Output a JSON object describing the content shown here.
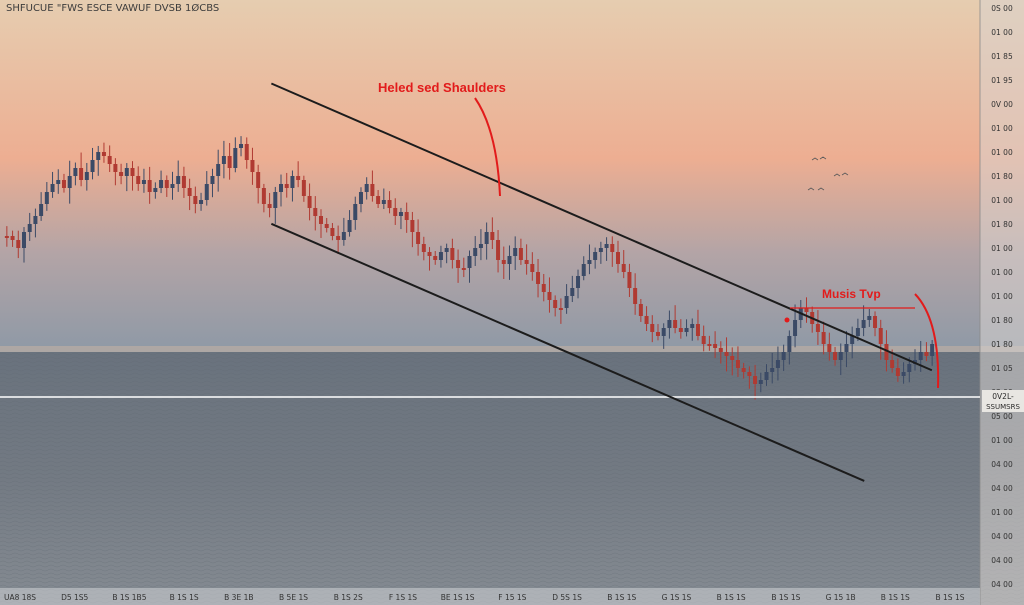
{
  "header": {
    "title": "SHFUCUE \"FWS ESCE VAWUF DVSB 1ØCBS"
  },
  "annotations": {
    "pattern_label": "Heled sed Shaulders",
    "top_label": "Musis Tvp"
  },
  "price_tag": {
    "line1": "0V2L-",
    "line2": "SSUMSRS"
  },
  "colors": {
    "sky_top": "#e8c8a6",
    "sky_mid": "#edb092",
    "sky_low": "#9aa4b0",
    "sea": "#6e747c",
    "bull_candle": "#3b4a66",
    "bear_candle": "#b03a32",
    "annotation": "#e21b1b",
    "trendline": "#1c1c1c"
  },
  "chart_data": {
    "type": "candlestick",
    "title": "SHFUCUE \"FWS ESCE VAWUF DVSB 1ØCBS",
    "price_axis_labels": [
      "0S 00",
      "01 00",
      "01 85",
      "01 95",
      "0V 00",
      "01 00",
      "01 00",
      "01 80",
      "01 00",
      "01 80",
      "01 00",
      "01 00",
      "01 00",
      "01 80",
      "01 80",
      "01 05",
      "03 00",
      "05 00",
      "01 00",
      "04 00",
      "04 00",
      "01 00",
      "04 00",
      "04 00",
      "04 00"
    ],
    "time_axis_labels": [
      "UA8 18S",
      "D5 1S5",
      "B 1S 1B5",
      "B 1S 1S",
      "B 3E 1B",
      "B 5E 1S",
      "B 1S 2S",
      "F 1S 1S",
      "BE 1S 1S",
      "F 15 1S",
      "D 5S 1S",
      "B 1S 1S",
      "G 1S 1S",
      "B 1S 1S",
      "B 1S 1S",
      "G 15 1B",
      "B 1S 1S",
      "B 1S 1S"
    ],
    "current_level_label": "0V2L- SSUMSRS",
    "trendline_upper": {
      "from": [
        0.265,
        0.138
      ],
      "to": [
        0.91,
        0.612
      ]
    },
    "trendline_lower": {
      "from": [
        0.265,
        0.37
      ],
      "to": [
        0.844,
        0.795
      ]
    },
    "series": [
      {
        "name": "",
        "values": [
          0.39,
          0.4,
          0.42,
          0.38,
          0.36,
          0.34,
          0.31,
          0.28,
          0.26,
          0.25,
          0.27,
          0.24,
          0.22,
          0.25,
          0.23,
          0.2,
          0.18,
          0.19,
          0.21,
          0.23,
          0.24,
          0.22,
          0.24,
          0.26,
          0.25,
          0.28,
          0.27,
          0.25,
          0.27,
          0.26,
          0.24,
          0.27,
          0.29,
          0.31,
          0.3,
          0.26,
          0.24,
          0.21,
          0.19,
          0.22,
          0.17,
          0.16,
          0.2,
          0.23,
          0.27,
          0.31,
          0.32,
          0.28,
          0.26,
          0.27,
          0.24,
          0.25,
          0.29,
          0.32,
          0.34,
          0.36,
          0.37,
          0.39,
          0.4,
          0.38,
          0.35,
          0.31,
          0.28,
          0.26,
          0.29,
          0.31,
          0.3,
          0.32,
          0.34,
          0.33,
          0.35,
          0.38,
          0.41,
          0.43,
          0.44,
          0.45,
          0.43,
          0.42,
          0.45,
          0.47,
          0.47,
          0.44,
          0.42,
          0.41,
          0.38,
          0.4,
          0.45,
          0.46,
          0.44,
          0.42,
          0.45,
          0.46,
          0.48,
          0.51,
          0.53,
          0.55,
          0.57,
          0.57,
          0.54,
          0.52,
          0.49,
          0.46,
          0.45,
          0.43,
          0.42,
          0.41,
          0.43,
          0.46,
          0.48,
          0.52,
          0.56,
          0.59,
          0.61,
          0.63,
          0.64,
          0.62,
          0.6,
          0.62,
          0.63,
          0.62,
          0.61,
          0.64,
          0.66,
          0.66,
          0.67,
          0.68,
          0.69,
          0.7,
          0.72,
          0.73,
          0.74,
          0.76,
          0.75,
          0.73,
          0.72,
          0.7,
          0.68,
          0.64,
          0.6,
          0.57,
          0.58,
          0.61,
          0.63,
          0.66,
          0.68,
          0.7,
          0.68,
          0.66,
          0.64,
          0.62,
          0.6,
          0.59,
          0.62,
          0.66,
          0.7,
          0.72,
          0.74,
          0.73,
          0.71,
          0.7,
          0.68,
          0.69,
          0.66
        ]
      }
    ]
  }
}
